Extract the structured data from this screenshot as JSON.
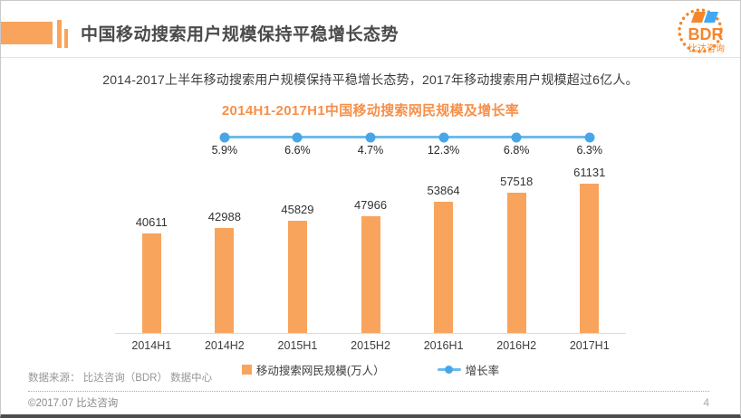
{
  "header": {
    "title": "中国移动搜索用户规模保持平稳增长态势",
    "logo": {
      "brand": "BDR",
      "brand_cn": "比达咨询"
    }
  },
  "subtitle": "2014-2017上半年移动搜索用户规模保持平稳增长态势，2017年移动搜索用户规模超过6亿人。",
  "chart_data": {
    "type": "bar",
    "title": "2014H1-2017H1中国移动搜索网民规模及增长率",
    "categories": [
      "2014H1",
      "2014H2",
      "2015H1",
      "2015H2",
      "2016H1",
      "2016H2",
      "2017H1"
    ],
    "series": [
      {
        "name": "移动搜索网民规模(万人）",
        "type": "bar",
        "values": [
          40611,
          42988,
          45829,
          47966,
          53864,
          57518,
          61131
        ],
        "color": "#F9A45C"
      },
      {
        "name": "增长率",
        "type": "line",
        "values": [
          null,
          5.9,
          6.6,
          4.7,
          12.3,
          6.8,
          6.3
        ],
        "unit": "%",
        "color": "#6CBBED",
        "dot_color": "#47A7E6"
      }
    ],
    "value_labels_shown": true,
    "ylim": [
      0,
      61131
    ],
    "grid": false,
    "legend_position": "bottom"
  },
  "colors": {
    "accent_orange": "#F9A45C",
    "title_orange": "#F78F49",
    "logo_orange": "#F5862B",
    "logo_blue": "#3FA9F5",
    "axis_gray": "#DBDBDB"
  },
  "footer": {
    "source": "数据来源： 比达咨询（BDR） 数据中心",
    "copyright": "©2017.07  比达咨询",
    "page_number": "4"
  }
}
